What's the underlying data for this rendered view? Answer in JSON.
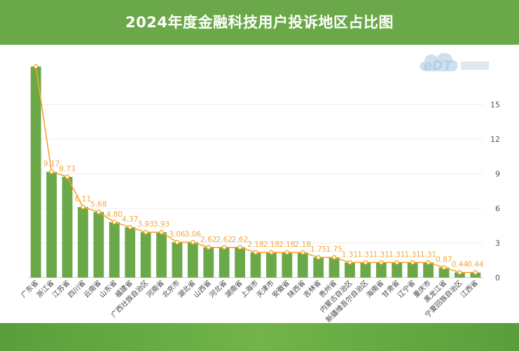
{
  "header": {
    "title": "2024年度金融科技用户投诉地区占比图"
  },
  "logo": {
    "text": "eDT"
  },
  "colors": {
    "bar": "#6aa84a",
    "line": "#f5a623",
    "label": "#f0a940",
    "header": "#6aa84a"
  },
  "chart_data": {
    "type": "bar",
    "title": "2024年度金融科技用户投诉地区占比图",
    "categories": [
      "广东省",
      "浙江省",
      "江苏省",
      "四川省",
      "云南省",
      "山东省",
      "福建省",
      "广西壮族自治区",
      "河南省",
      "北京市",
      "湖北省",
      "山西省",
      "河北省",
      "湖南省",
      "上海市",
      "天津市",
      "安徽省",
      "陕西省",
      "吉林省",
      "贵州省",
      "内蒙古自治区",
      "新疆维吾尔自治区",
      "海南省",
      "甘肃省",
      "辽宁省",
      "重庆市",
      "黑龙江省",
      "宁夏回族自治区",
      "江西省"
    ],
    "series": [
      {
        "type": "bar",
        "values": [
          18.3,
          9.17,
          8.73,
          6.11,
          5.68,
          4.8,
          4.37,
          3.93,
          3.93,
          3.06,
          3.06,
          2.62,
          2.62,
          2.62,
          2.18,
          2.18,
          2.18,
          2.18,
          1.75,
          1.75,
          1.31,
          1.31,
          1.31,
          1.31,
          1.31,
          1.31,
          0.87,
          0.44,
          0.44
        ]
      },
      {
        "type": "line",
        "values": [
          18.3,
          9.17,
          8.73,
          6.11,
          5.68,
          4.8,
          4.37,
          3.93,
          3.93,
          3.06,
          3.06,
          2.62,
          2.62,
          2.62,
          2.18,
          2.18,
          2.18,
          2.18,
          1.75,
          1.75,
          1.31,
          1.31,
          1.31,
          1.31,
          1.31,
          1.31,
          0.87,
          0.44,
          0.44
        ]
      }
    ],
    "data_labels": [
      "",
      "9.17",
      "8.73",
      "6.11",
      "5.68",
      "4.80",
      "4.37",
      "3.93",
      "3.93",
      "3.06",
      "3.06",
      "2.62",
      "2.62",
      "2.62",
      "2.18",
      "2.18",
      "2.18",
      "2.18",
      "1.75",
      "1.75",
      "1.31",
      "1.31",
      "1.31",
      "1.31",
      "1.31",
      "1.31",
      "0.87",
      "0.44",
      "0.44"
    ],
    "y_ticks": [
      "0",
      "3",
      "6",
      "9",
      "12",
      "15"
    ],
    "ylim": [
      0,
      18
    ],
    "y_axis_side": "right",
    "grid": true,
    "xlabel": "",
    "ylabel": ""
  }
}
